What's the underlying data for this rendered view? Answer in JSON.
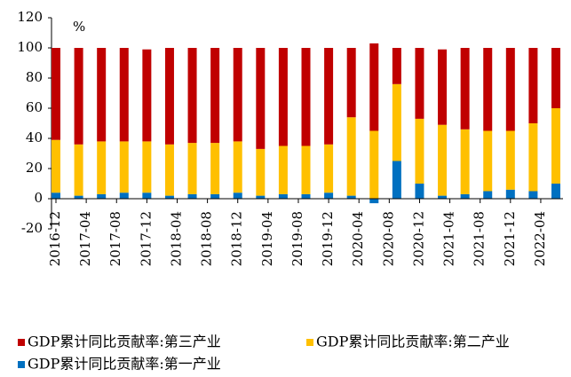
{
  "chart_data": {
    "type": "stacked_bar",
    "annotation": "%",
    "x": [
      "2016-12",
      "2017-03",
      "2017-06",
      "2017-09",
      "2017-12",
      "2018-03",
      "2018-06",
      "2018-09",
      "2018-12",
      "2019-03",
      "2019-06",
      "2019-09",
      "2019-12",
      "2020-03",
      "2020-06",
      "2020-09",
      "2020-12",
      "2021-03",
      "2021-06",
      "2021-09",
      "2021-12",
      "2022-03",
      "2022-06"
    ],
    "xticks": [
      "2016-12",
      "2017-04",
      "2017-08",
      "2017-12",
      "2018-04",
      "2018-08",
      "2018-12",
      "2019-04",
      "2019-08",
      "2019-12",
      "2020-04",
      "2020-08",
      "2020-12",
      "2021-04",
      "2021-08",
      "2021-12",
      "2022-04"
    ],
    "series": [
      {
        "name": "GDP累计同比贡献率:第一产业",
        "color": "#0070c0",
        "values": [
          4,
          2,
          3,
          4,
          4,
          2,
          3,
          3,
          4,
          2,
          3,
          3,
          4,
          2,
          -3,
          25,
          10,
          2,
          3,
          5,
          6,
          5,
          10
        ]
      },
      {
        "name": "GDP累计同比贡献率:第二产业",
        "color": "#ffc000",
        "values": [
          35,
          34,
          35,
          34,
          34,
          34,
          34,
          34,
          34,
          31,
          32,
          32,
          32,
          52,
          45,
          51,
          43,
          47,
          43,
          40,
          39,
          45,
          50
        ]
      },
      {
        "name": "GDP累计同比贡献率:第三产业",
        "color": "#c00000",
        "values": [
          61,
          64,
          62,
          62,
          61,
          64,
          63,
          63,
          62,
          67,
          65,
          65,
          64,
          46,
          58,
          24,
          47,
          50,
          54,
          55,
          55,
          50,
          40
        ]
      }
    ],
    "ylim": [
      -20,
      120
    ],
    "yticks": [
      -20,
      0,
      20,
      40,
      60,
      80,
      100,
      120
    ],
    "legend": "bottom"
  }
}
